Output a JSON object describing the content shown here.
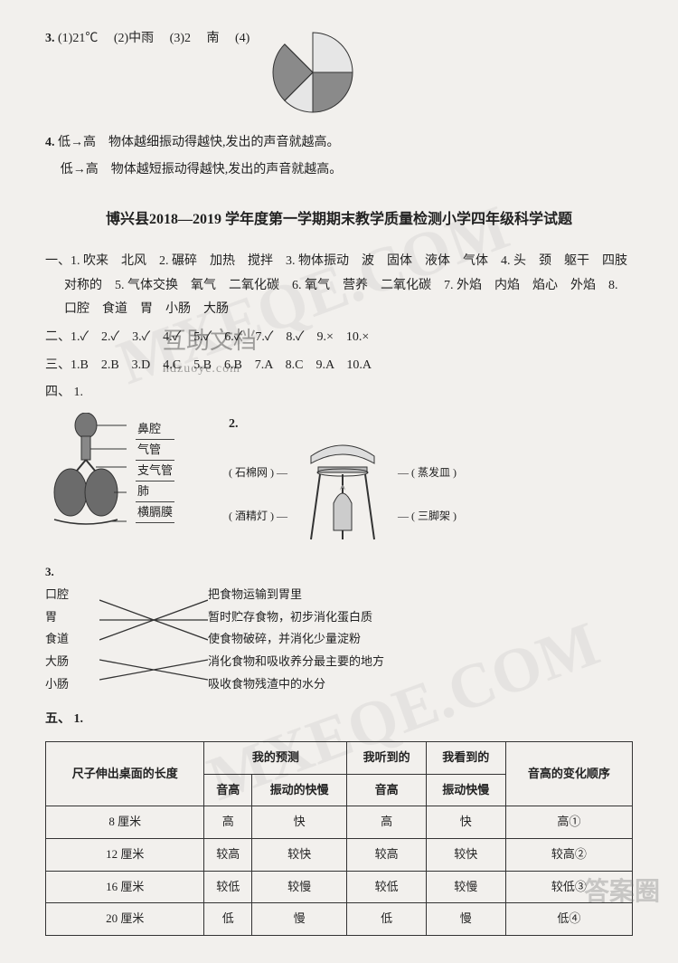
{
  "q3": {
    "prefix": "3.",
    "parts": [
      "(1)21℃",
      "(2)中雨",
      "(3)2",
      "南",
      "(4)"
    ],
    "pie": {
      "colors": [
        "#8a8a8a",
        "#c9c9c9",
        "#8a8a8a",
        "#c9c9c9"
      ],
      "stroke": "#333333",
      "bg": "#ffffff",
      "radius": 44
    }
  },
  "q4": {
    "prefix": "4.",
    "lines": [
      "低→高　物体越细振动得越快,发出的声音就越高。",
      "低→高　物体越短振动得越快,发出的声音就越高。"
    ]
  },
  "paper": {
    "title": "博兴县2018—2019 学年度第一学期期末教学质量检测小学四年级科学试题"
  },
  "sec1": {
    "prefix": "一、",
    "items": [
      "1. 吹来　北风",
      "2. 碾碎　加热　搅拌",
      "3. 物体振动　波　固体　液体　气体",
      "4. 头　颈　躯干　四肢　对称的",
      "5. 气体交换　氧气　二氧化碳",
      "6. 氧气　营养　二氧化碳",
      "7. 外焰　内焰　焰心　外焰",
      "8. 口腔　食道　胃　小肠　大肠"
    ]
  },
  "sec2": {
    "prefix": "二、",
    "items": [
      "1.✓",
      "2.✓",
      "3.✓",
      "4.✓",
      "5.✓",
      "6.✓",
      "7.✓",
      "8.✓",
      "9.×",
      "10.×"
    ]
  },
  "sec3": {
    "prefix": "三、",
    "items": [
      "1.B",
      "2.B",
      "3.D",
      "4.C",
      "5.B",
      "6.B",
      "7.A",
      "8.C",
      "9.A",
      "10.A"
    ]
  },
  "watermark": {
    "main": "互助文档",
    "sub": "hdzuoye.com"
  },
  "sec4": {
    "prefix": "四、",
    "fig1": {
      "num": "1.",
      "labels": [
        "鼻腔",
        "气管",
        "支气管",
        "肺",
        "横膈膜"
      ]
    },
    "fig2": {
      "num": "2.",
      "left": [
        {
          "paren_l": "(",
          "name": "石棉网",
          "paren_r": ")"
        },
        {
          "paren_l": "(",
          "name": "酒精灯",
          "paren_r": ")"
        }
      ],
      "right": [
        {
          "paren_l": "(",
          "name": "蒸发皿",
          "paren_r": ")"
        },
        {
          "paren_l": "(",
          "name": "三脚架",
          "paren_r": ")"
        }
      ]
    }
  },
  "match": {
    "num": "3.",
    "left": [
      "口腔",
      "胃",
      "食道",
      "大肠",
      "小肠"
    ],
    "right": [
      "把食物运输到胃里",
      "暂时贮存食物，初步消化蛋白质",
      "使食物破碎，并消化少量淀粉",
      "消化食物和吸收养分最主要的地方",
      "吸收食物残渣中的水分"
    ],
    "connections": [
      [
        0,
        2
      ],
      [
        1,
        1
      ],
      [
        2,
        0
      ],
      [
        3,
        4
      ],
      [
        4,
        3
      ]
    ],
    "stroke": "#333333"
  },
  "sec5": {
    "prefix": "五、",
    "num": "1.",
    "table": {
      "header_row1": [
        "尺子伸出桌面的长度",
        "我的预测",
        "我听到的",
        "我看到的",
        "音高的变化顺序"
      ],
      "header_row2": [
        "音高",
        "振动的快慢",
        "音高",
        "振动快慢"
      ],
      "rows": [
        [
          "8 厘米",
          "高",
          "快",
          "高",
          "快",
          "高①"
        ],
        [
          "12 厘米",
          "较高",
          "较快",
          "较高",
          "较快",
          "较高②"
        ],
        [
          "16 厘米",
          "较低",
          "较慢",
          "较低",
          "较慢",
          "较低③"
        ],
        [
          "20 厘米",
          "低",
          "慢",
          "低",
          "慢",
          "低④"
        ]
      ]
    }
  },
  "bg_marks": {
    "m1": "MXEQE.COM",
    "corner": "答案圈"
  }
}
